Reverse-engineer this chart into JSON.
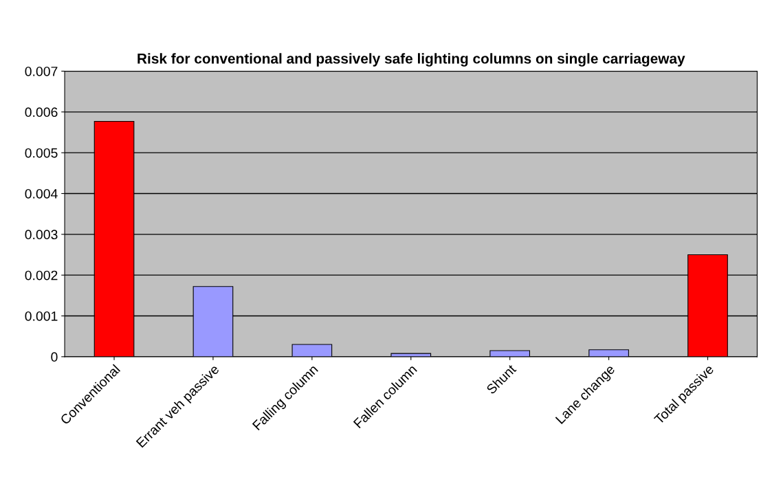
{
  "chart_data": {
    "type": "bar",
    "title": "Risk for conventional and passively safe lighting columns on single carriageway",
    "categories": [
      "Conventional",
      "Errant veh passive",
      "Falling column",
      "Fallen column",
      "Shunt",
      "Lane change",
      "Total passive"
    ],
    "values": [
      0.00577,
      0.00172,
      0.0003,
      8e-05,
      0.00015,
      0.00017,
      0.0025
    ],
    "colors": [
      "#ff0000",
      "#9999ff",
      "#9999ff",
      "#9999ff",
      "#9999ff",
      "#9999ff",
      "#ff0000"
    ],
    "ylim": [
      0,
      0.007
    ],
    "yticks": [
      0,
      0.001,
      0.002,
      0.003,
      0.004,
      0.005,
      0.006,
      0.007
    ],
    "grid": "y"
  }
}
